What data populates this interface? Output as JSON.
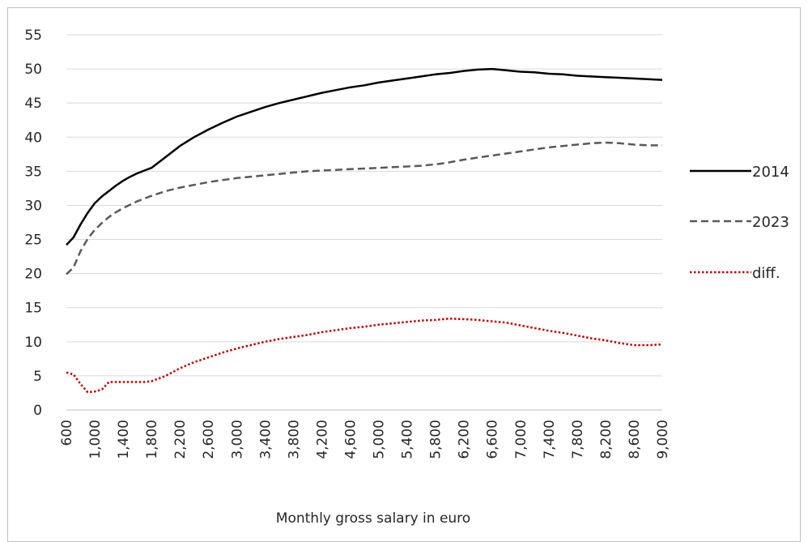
{
  "chart_data": {
    "type": "line",
    "xlabel": "Monthly gross salary in euro",
    "ylabel": "",
    "ylim": [
      0,
      55
    ],
    "yticks": [
      "0",
      "5",
      "10",
      "15",
      "20",
      "25",
      "30",
      "35",
      "40",
      "45",
      "50",
      "55"
    ],
    "x": [
      600,
      700,
      800,
      900,
      1000,
      1100,
      1200,
      1300,
      1400,
      1500,
      1600,
      1700,
      1800,
      2000,
      2200,
      2400,
      2600,
      2800,
      3000,
      3200,
      3400,
      3600,
      3800,
      4000,
      4200,
      4400,
      4600,
      4800,
      5000,
      5200,
      5400,
      5600,
      5800,
      6000,
      6200,
      6400,
      6600,
      6800,
      7000,
      7200,
      7400,
      7600,
      7800,
      8000,
      8200,
      8400,
      8600,
      8800,
      9000
    ],
    "xticks": [
      "600",
      "1,000",
      "1,400",
      "1,800",
      "2,200",
      "2,600",
      "3,000",
      "3,400",
      "3,800",
      "4,200",
      "4,600",
      "5,000",
      "5,400",
      "5,800",
      "6,200",
      "6,600",
      "7,000",
      "7,400",
      "7,800",
      "8,200",
      "8,600",
      "9,000"
    ],
    "legend_position": "right",
    "grid": true,
    "series": [
      {
        "name": "2014",
        "color": "#000000",
        "style": "solid",
        "values": [
          24.2,
          25.3,
          27.2,
          28.9,
          30.3,
          31.3,
          32.1,
          32.9,
          33.6,
          34.2,
          34.7,
          35.1,
          35.5,
          37.1,
          38.7,
          40.0,
          41.1,
          42.1,
          43.0,
          43.7,
          44.4,
          45.0,
          45.5,
          46.0,
          46.5,
          46.9,
          47.3,
          47.6,
          48.0,
          48.3,
          48.6,
          48.9,
          49.2,
          49.4,
          49.7,
          49.9,
          50.0,
          49.8,
          49.6,
          49.5,
          49.3,
          49.2,
          49.0,
          48.9,
          48.8,
          48.7,
          48.6,
          48.5,
          48.4
        ]
      },
      {
        "name": "2023",
        "color": "#595959",
        "style": "dashed",
        "values": [
          19.9,
          20.9,
          23.3,
          25.1,
          26.4,
          27.4,
          28.3,
          29.0,
          29.6,
          30.1,
          30.6,
          31.0,
          31.4,
          32.1,
          32.6,
          33.0,
          33.4,
          33.7,
          34.0,
          34.2,
          34.4,
          34.6,
          34.8,
          35.0,
          35.1,
          35.2,
          35.3,
          35.4,
          35.5,
          35.6,
          35.7,
          35.8,
          36.0,
          36.3,
          36.7,
          37.0,
          37.3,
          37.6,
          37.9,
          38.2,
          38.5,
          38.7,
          38.9,
          39.1,
          39.2,
          39.1,
          38.9,
          38.8,
          38.8
        ]
      },
      {
        "name": "diff.",
        "color": "#c00000",
        "style": "dotted",
        "values": [
          5.5,
          5.2,
          3.8,
          2.6,
          2.7,
          3.0,
          4.1,
          4.1,
          4.1,
          4.1,
          4.1,
          4.1,
          4.2,
          5.0,
          6.1,
          7.0,
          7.7,
          8.4,
          9.0,
          9.5,
          10.0,
          10.4,
          10.7,
          11.0,
          11.4,
          11.7,
          12.0,
          12.2,
          12.5,
          12.7,
          12.9,
          13.1,
          13.2,
          13.4,
          13.3,
          13.2,
          13.0,
          12.8,
          12.4,
          12.0,
          11.6,
          11.3,
          10.9,
          10.5,
          10.2,
          9.8,
          9.5,
          9.5,
          9.6
        ]
      }
    ]
  }
}
